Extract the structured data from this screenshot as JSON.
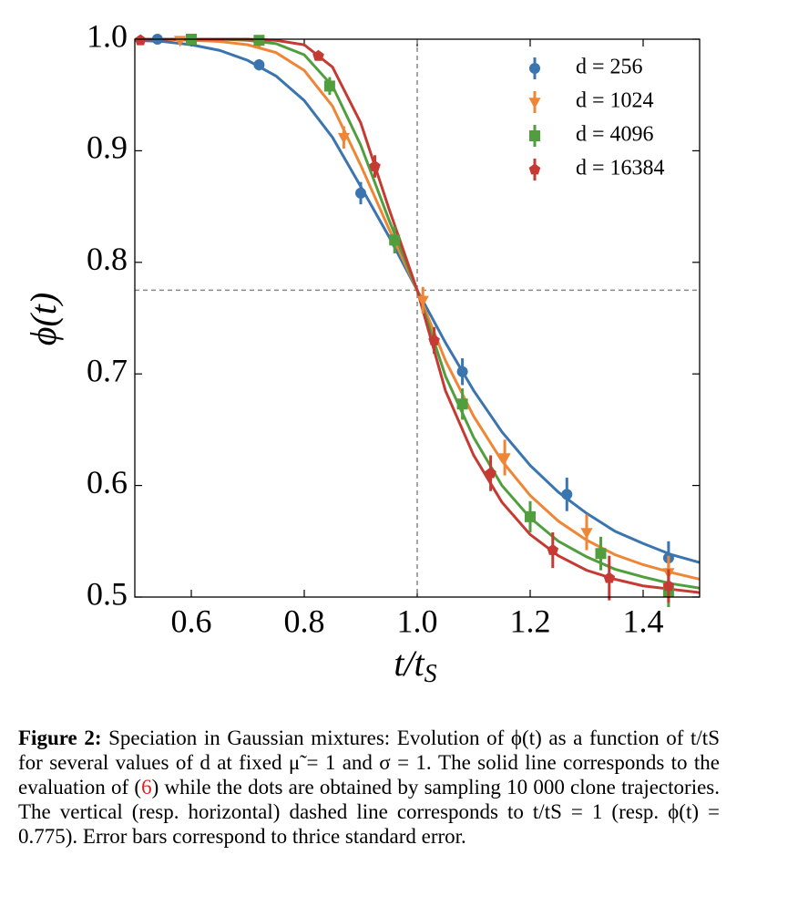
{
  "chart_data": {
    "type": "scatter",
    "xlabel": {
      "text": "t/t",
      "sub": "S"
    },
    "ylabel": "ϕ(t)",
    "xlim": [
      0.5,
      1.5
    ],
    "ylim": [
      0.5,
      1.0
    ],
    "xticks": [
      0.6,
      0.8,
      {
        "value": 1,
        "label": "1.0"
      },
      1.2,
      1.4
    ],
    "yticks": [
      0.5,
      0.6,
      0.7,
      0.8,
      0.9,
      {
        "value": 1,
        "label": "1.0"
      }
    ],
    "reference_lines": {
      "x": 1,
      "y": 0.775
    },
    "curve_x": [
      0.5,
      0.55,
      0.6,
      0.65,
      0.7,
      0.75,
      0.8,
      0.85,
      0.9,
      0.95,
      1.0,
      1.05,
      1.1,
      1.15,
      1.2,
      1.25,
      1.3,
      1.35,
      1.4,
      1.45,
      1.5
    ],
    "series": [
      {
        "name": "d = 256",
        "color": "#3b75af",
        "marker": "circle",
        "x": [
          0.54,
          0.72,
          0.9,
          1.08,
          1.265,
          1.445
        ],
        "values": [
          1.0,
          0.977,
          0.862,
          0.702,
          0.592,
          0.535
        ],
        "errors": [
          0.002,
          0.005,
          0.01,
          0.012,
          0.015,
          0.015
        ],
        "curve_values": [
          0.999,
          0.998,
          0.995,
          0.99,
          0.981,
          0.967,
          0.945,
          0.912,
          0.868,
          0.823,
          0.775,
          0.728,
          0.685,
          0.648,
          0.618,
          0.594,
          0.575,
          0.559,
          0.548,
          0.538,
          0.531
        ]
      },
      {
        "name": "d = 1024",
        "color": "#ef8636",
        "marker": "triangle-down",
        "x": [
          0.58,
          0.72,
          0.87,
          1.01,
          1.155,
          1.3,
          1.445
        ],
        "values": [
          0.999,
          0.997,
          0.912,
          0.766,
          0.625,
          0.558,
          0.522
        ],
        "errors": [
          0.002,
          0.004,
          0.01,
          0.012,
          0.016,
          0.016,
          0.015
        ],
        "curve_values": [
          1.0,
          1.0,
          0.999,
          0.998,
          0.995,
          0.988,
          0.972,
          0.94,
          0.887,
          0.83,
          0.775,
          0.712,
          0.662,
          0.622,
          0.591,
          0.568,
          0.551,
          0.538,
          0.529,
          0.522,
          0.516
        ]
      },
      {
        "name": "d = 4096",
        "color": "#519e3e",
        "marker": "square",
        "x": [
          0.6,
          0.72,
          0.845,
          0.96,
          1.08,
          1.2,
          1.325,
          1.445
        ],
        "values": [
          1.0,
          0.999,
          0.958,
          0.82,
          0.673,
          0.572,
          0.539,
          0.505
        ],
        "errors": [
          0.002,
          0.003,
          0.008,
          0.012,
          0.014,
          0.014,
          0.015,
          0.014
        ],
        "curve_values": [
          1.0,
          1.0,
          1.0,
          1.0,
          0.999,
          0.996,
          0.986,
          0.958,
          0.905,
          0.838,
          0.775,
          0.698,
          0.643,
          0.6,
          0.571,
          0.55,
          0.536,
          0.525,
          0.518,
          0.512,
          0.508
        ]
      },
      {
        "name": "d = 16384",
        "color": "#c53a32",
        "marker": "pentagon",
        "x": [
          0.51,
          0.825,
          0.925,
          1.03,
          1.13,
          1.24,
          1.34,
          1.445
        ],
        "values": [
          0.999,
          0.985,
          0.886,
          0.73,
          0.611,
          0.542,
          0.517,
          0.51
        ],
        "errors": [
          0.002,
          0.004,
          0.01,
          0.012,
          0.016,
          0.016,
          0.02,
          0.015
        ],
        "curve_values": [
          1.0,
          1.0,
          1.0,
          1.0,
          1.0,
          0.999,
          0.995,
          0.975,
          0.925,
          0.848,
          0.775,
          0.685,
          0.627,
          0.585,
          0.556,
          0.537,
          0.524,
          0.516,
          0.51,
          0.507,
          0.504
        ]
      }
    ]
  },
  "caption": {
    "label": "Figure 2:",
    "text_before_ref": "Speciation in Gaussian mixtures: Evolution of ϕ(t) as a function of t/tS for several values of d at fixed μ̃ = 1 and σ = 1. The solid line corresponds to the evaluation of (",
    "ref": "6",
    "text_after_ref": ") while the dots are obtained by sampling 10 000 clone trajectories. The vertical (resp. horizontal) dashed line corresponds to t/tS = 1 (resp. ϕ(t) = 0.775). Error bars correspond to thrice standard error."
  }
}
